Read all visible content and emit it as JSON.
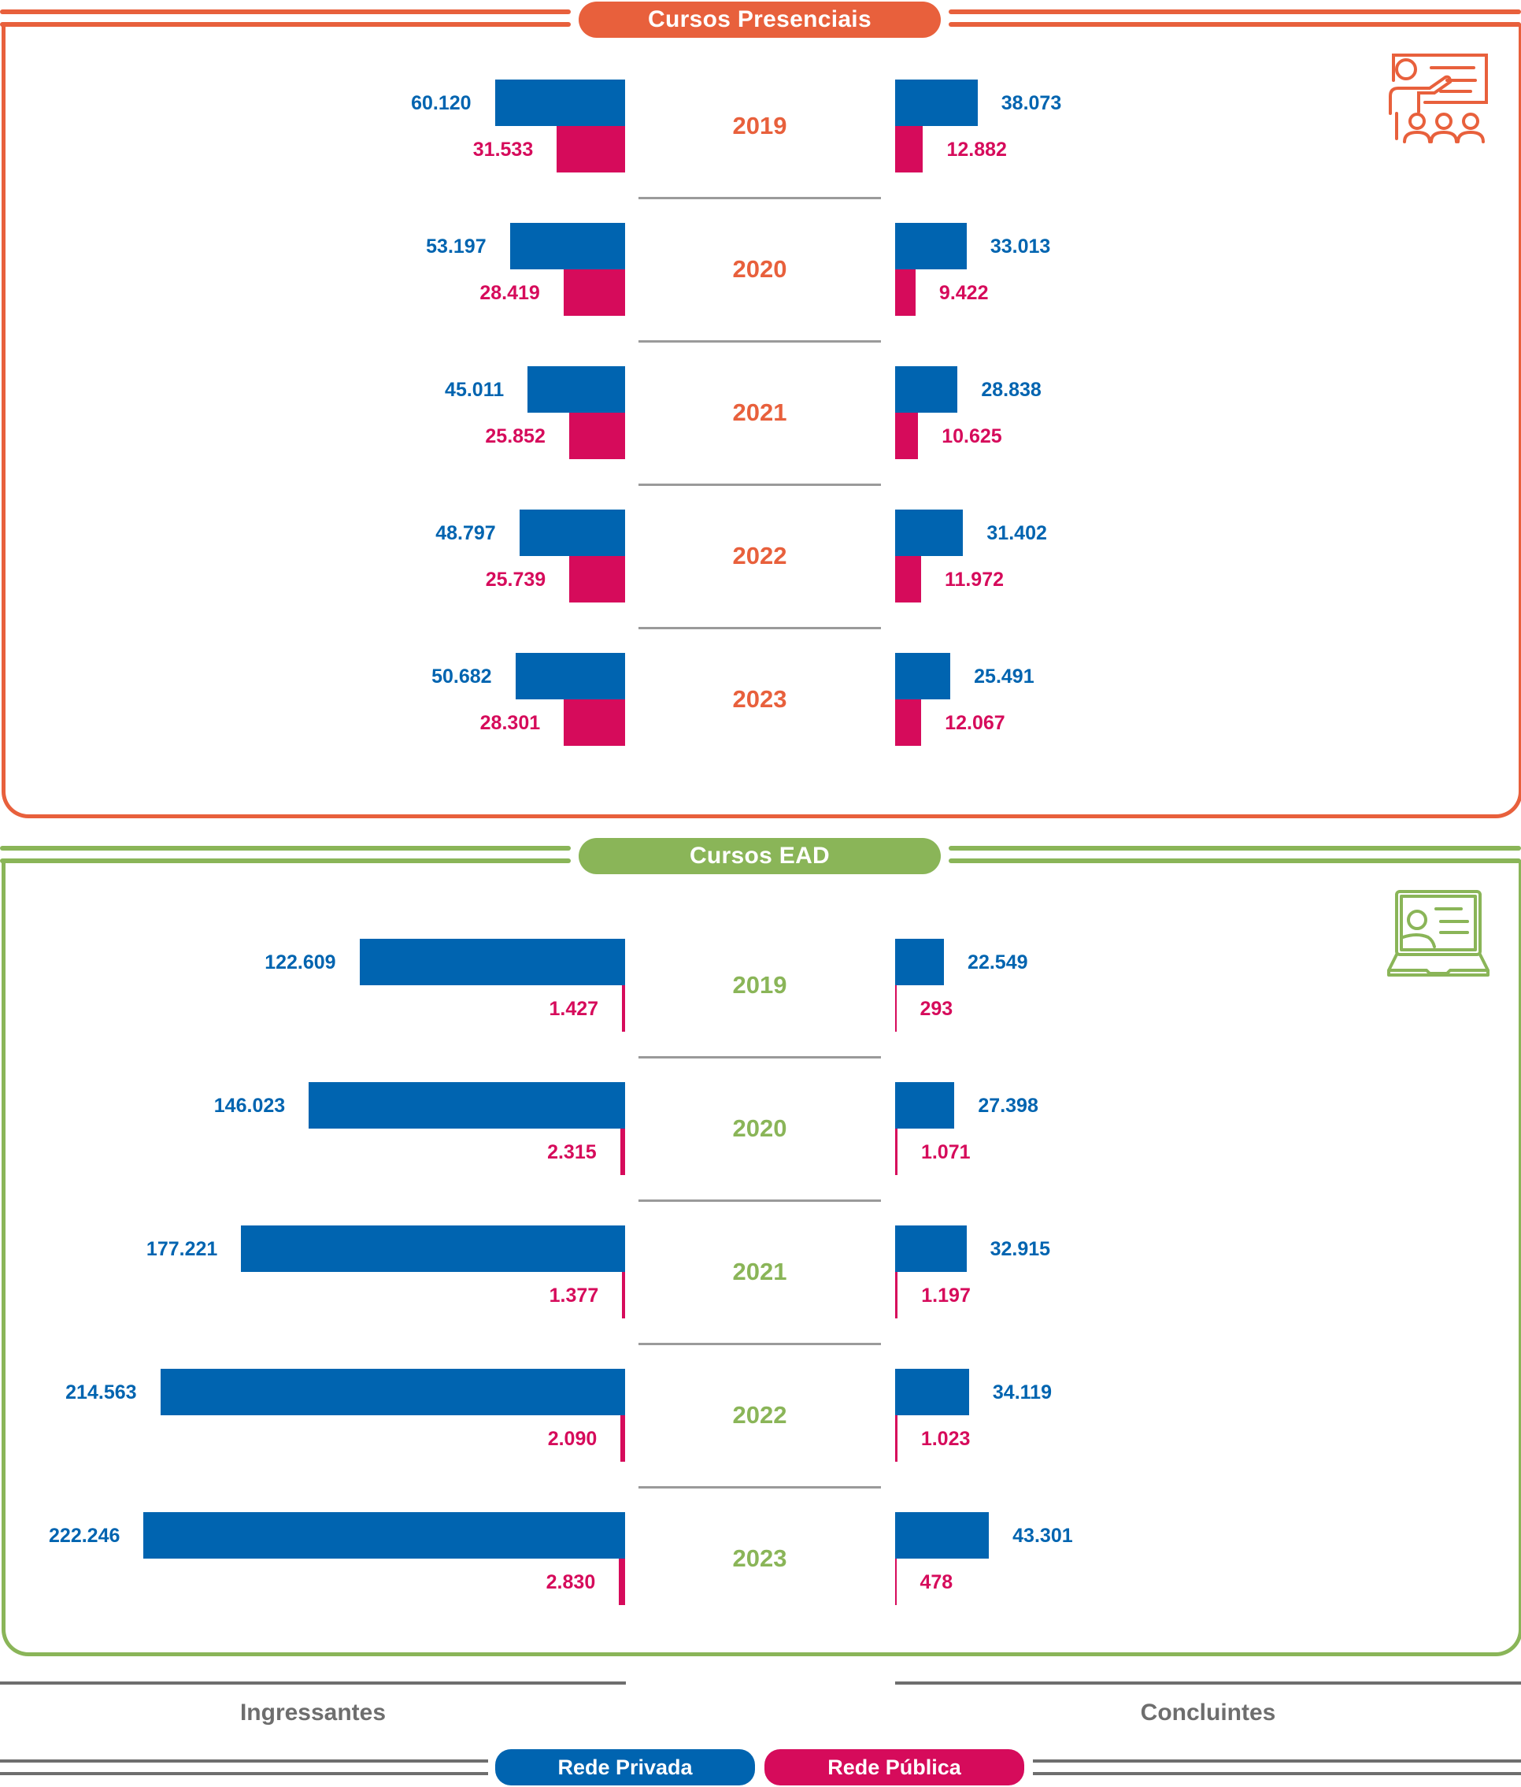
{
  "colors": {
    "presencial": "#E8603C",
    "ead": "#8AB558",
    "rede_privada": "#0064B0",
    "rede_publica": "#D60B5B",
    "neutral": "#6E6E6E"
  },
  "icons": {
    "presencial": "classroom-presenter-icon",
    "ead": "laptop-video-call-icon"
  },
  "footer": {
    "left_label": "Ingressantes",
    "right_label": "Concluintes",
    "legend": [
      "Rede Privada",
      "Rede Pública"
    ]
  },
  "chart_data": [
    {
      "type": "bar",
      "orientation": "horizontal-diverging",
      "title": "Cursos Presenciais",
      "categories": [
        "2019",
        "2020",
        "2021",
        "2022",
        "2023"
      ],
      "groups": [
        "Ingressantes",
        "Concluintes"
      ],
      "series": [
        {
          "name": "Rede Privada",
          "group": "Ingressantes",
          "values": [
            60120,
            53197,
            45011,
            48797,
            50682
          ]
        },
        {
          "name": "Rede Pública",
          "group": "Ingressantes",
          "values": [
            31533,
            28419,
            25852,
            25739,
            28301
          ]
        },
        {
          "name": "Rede Privada",
          "group": "Concluintes",
          "values": [
            38073,
            33013,
            28838,
            31402,
            25491
          ]
        },
        {
          "name": "Rede Pública",
          "group": "Concluintes",
          "values": [
            12882,
            9422,
            10625,
            11972,
            12067
          ]
        }
      ]
    },
    {
      "type": "bar",
      "orientation": "horizontal-diverging",
      "title": "Cursos EAD",
      "categories": [
        "2019",
        "2020",
        "2021",
        "2022",
        "2023"
      ],
      "groups": [
        "Ingressantes",
        "Concluintes"
      ],
      "series": [
        {
          "name": "Rede Privada",
          "group": "Ingressantes",
          "values": [
            122609,
            146023,
            177221,
            214563,
            222246
          ]
        },
        {
          "name": "Rede Pública",
          "group": "Ingressantes",
          "values": [
            1427,
            2315,
            1377,
            2090,
            2830
          ]
        },
        {
          "name": "Rede Privada",
          "group": "Concluintes",
          "values": [
            22549,
            27398,
            32915,
            34119,
            43301
          ]
        },
        {
          "name": "Rede Pública",
          "group": "Concluintes",
          "values": [
            293,
            1071,
            1197,
            1023,
            478
          ]
        }
      ]
    }
  ]
}
